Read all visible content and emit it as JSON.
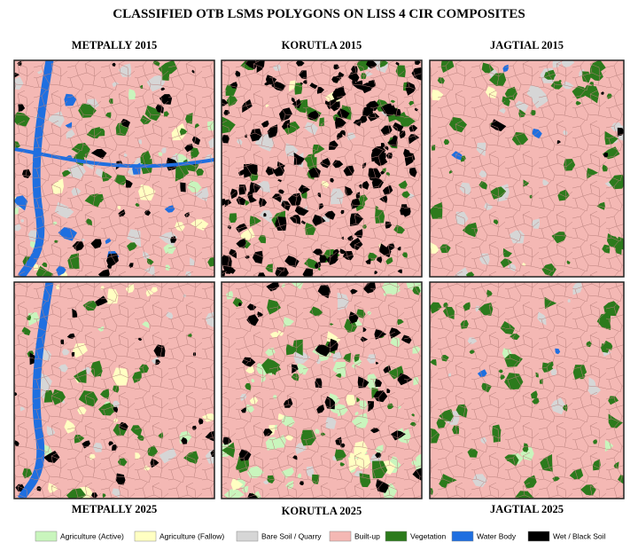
{
  "title": "CLASSIFIED OTB LSMS POLYGONS ON LISS 4 CIR COMPOSITES",
  "panels": [
    {
      "label": "METPALLY 2015"
    },
    {
      "label": "KORUTLA 2015"
    },
    {
      "label": "JAGTIAL 2015"
    },
    {
      "label": "METPALLY 2025"
    },
    {
      "label": "KORUTLA 2025"
    },
    {
      "label": "JAGTIAL 2025"
    }
  ],
  "legend": {
    "items": [
      {
        "label": "Agriculture (Active)",
        "color": "#c9f5bd"
      },
      {
        "label": "Agriculture (Fallow)",
        "color": "#ffffc2"
      },
      {
        "label": "Bare Soil / Quarry",
        "color": "#d6d6d6"
      },
      {
        "label": "Built-up",
        "color": "#f4b8b4"
      },
      {
        "label": "Vegetation",
        "color": "#2c7a1c"
      },
      {
        "label": "Water Body",
        "color": "#1f6fe0"
      },
      {
        "label": "Wet / Black Soil",
        "color": "#000000"
      }
    ]
  }
}
